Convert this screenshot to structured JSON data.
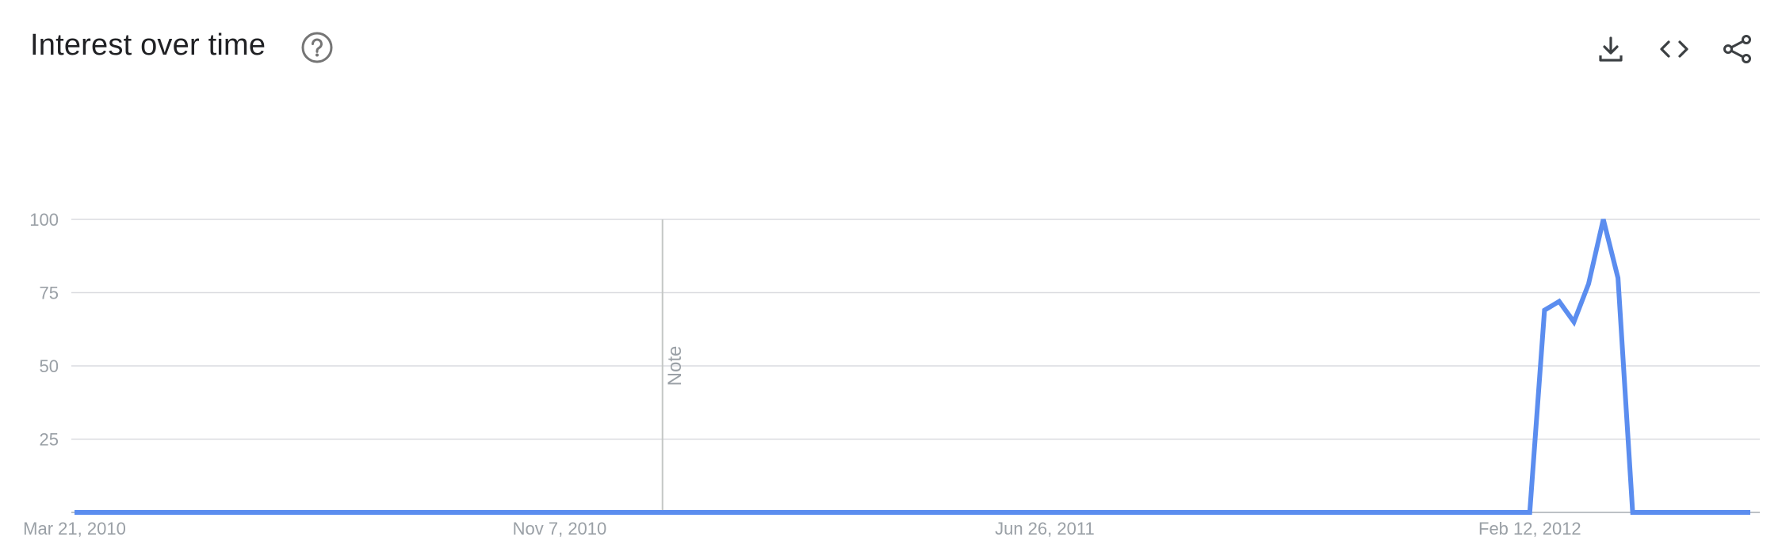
{
  "header": {
    "title": "Interest over time",
    "help_icon": "help-circle-icon",
    "actions": [
      {
        "name": "download",
        "icon": "download-icon"
      },
      {
        "name": "embed",
        "icon": "code-icon"
      },
      {
        "name": "share",
        "icon": "share-icon"
      }
    ]
  },
  "colors": {
    "line": "#5b8def",
    "grid": "#dadce0",
    "axis_text": "#9aa0a6",
    "title_text": "#202124",
    "icon": "#5f6368"
  },
  "chart_data": {
    "type": "line",
    "title": "Interest over time",
    "xlabel": "",
    "ylabel": "",
    "ylim": [
      0,
      100
    ],
    "y_ticks": [
      25,
      50,
      75,
      100
    ],
    "x_tick_labels": [
      "Mar 21, 2010",
      "Nov 7, 2010",
      "Jun 26, 2011",
      "Feb 12, 2012"
    ],
    "x_tick_dates": [
      "2010-03-21",
      "2010-11-07",
      "2011-06-26",
      "2012-02-12"
    ],
    "xlim": [
      "2010-03-21",
      "2012-05-27"
    ],
    "grid": true,
    "legend": "none",
    "annotations": [
      {
        "date": "2010-12-26",
        "label": "Note"
      }
    ],
    "series": [
      {
        "points": [
          {
            "x": "2010-03-21",
            "y": 0
          },
          {
            "x": "2012-02-12",
            "y": 0
          },
          {
            "x": "2012-02-19",
            "y": 69
          },
          {
            "x": "2012-02-26",
            "y": 72
          },
          {
            "x": "2012-03-04",
            "y": 65
          },
          {
            "x": "2012-03-11",
            "y": 78
          },
          {
            "x": "2012-03-18",
            "y": 100
          },
          {
            "x": "2012-03-25",
            "y": 80
          },
          {
            "x": "2012-04-01",
            "y": 0
          },
          {
            "x": "2012-05-27",
            "y": 0
          }
        ]
      }
    ]
  }
}
